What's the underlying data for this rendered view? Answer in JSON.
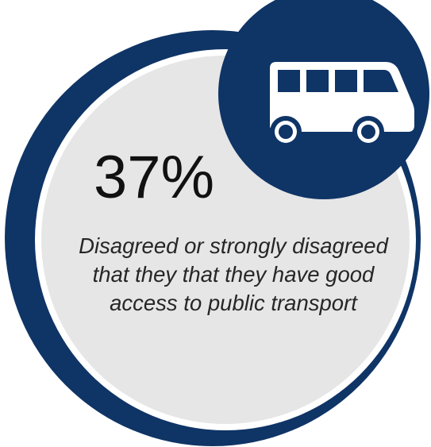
{
  "infographic": {
    "stat_value": "37%",
    "caption": "Disagreed or strongly disagreed that they that they have good access to public transport",
    "icon": "bus-icon"
  },
  "colors": {
    "navy": "#0f3466",
    "disc_fill": "#e6e6e6",
    "disc_border": "#ffffff",
    "icon_fill": "#ffffff",
    "text_dark": "#111111"
  }
}
